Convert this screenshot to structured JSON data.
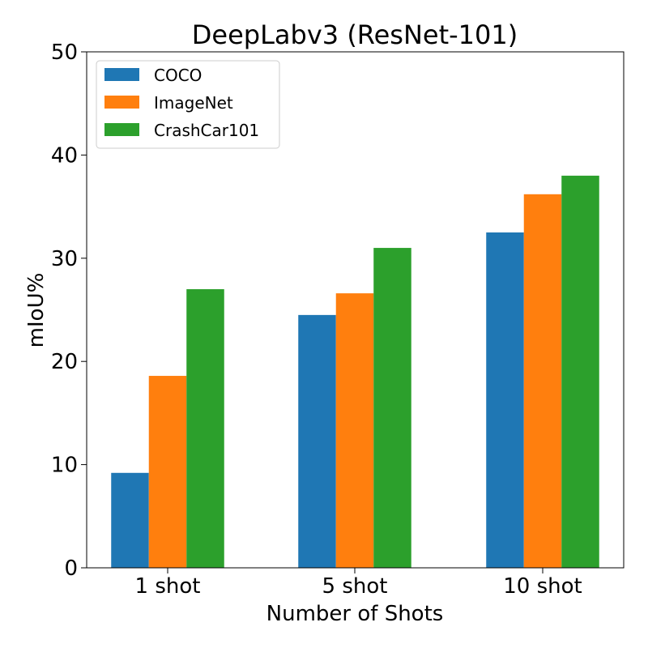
{
  "chart_data": {
    "type": "bar",
    "title": "DeepLabv3 (ResNet-101)",
    "xlabel": "Number of Shots",
    "ylabel": "mIoU%",
    "categories": [
      "1 shot",
      "5 shot",
      "10 shot"
    ],
    "ylim": [
      0,
      50
    ],
    "yticks": [
      0,
      10,
      20,
      30,
      40,
      50
    ],
    "legend_position": "top-left",
    "grid": false,
    "series": [
      {
        "name": "COCO",
        "color": "#1f77b4",
        "values": [
          9.2,
          24.5,
          32.5
        ]
      },
      {
        "name": "ImageNet",
        "color": "#ff7f0e",
        "values": [
          18.6,
          26.6,
          36.2
        ]
      },
      {
        "name": "CrashCar101",
        "color": "#2ca02c",
        "values": [
          27.0,
          31.0,
          38.0
        ]
      }
    ]
  }
}
